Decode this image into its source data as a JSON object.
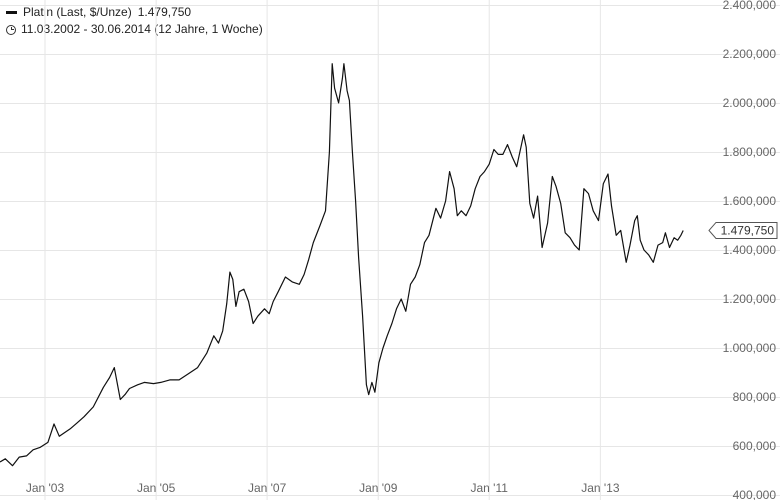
{
  "legend": {
    "series_label": "Platin (Last, $/Unze)",
    "last_value": "1.479,750",
    "date_range": "11.03.2002 - 30.06.2014 (12 Jahre, 1 Woche)"
  },
  "colors": {
    "line": "#111111",
    "grid": "#e6e6e6",
    "axis_text": "#666666",
    "badge_border": "#555555"
  },
  "chart_data": {
    "type": "line",
    "title": "Platin (Last, $/Unze)",
    "xlabel": "",
    "ylabel": "",
    "x_ticks": [
      {
        "label": "Jan '03",
        "date": "2003-01-01"
      },
      {
        "label": "Jan '05",
        "date": "2005-01-01"
      },
      {
        "label": "Jan '07",
        "date": "2007-01-01"
      },
      {
        "label": "Jan '09",
        "date": "2009-01-01"
      },
      {
        "label": "Jan '11",
        "date": "2011-01-01"
      },
      {
        "label": "Jan '13",
        "date": "2013-01-01"
      }
    ],
    "y_ticks": [
      {
        "label": "400,000",
        "value": 400
      },
      {
        "label": "600,000",
        "value": 600
      },
      {
        "label": "800,000",
        "value": 800
      },
      {
        "label": "1.000,000",
        "value": 1000
      },
      {
        "label": "1.200,000",
        "value": 1200
      },
      {
        "label": "1.400,000",
        "value": 1400
      },
      {
        "label": "1.600,000",
        "value": 1600
      },
      {
        "label": "1.800,000",
        "value": 1800
      },
      {
        "label": "2.000,000",
        "value": 2000
      },
      {
        "label": "2.200,000",
        "value": 2200
      },
      {
        "label": "2.400,000",
        "value": 2400
      }
    ],
    "xlim": [
      "2002-03-11",
      "2014-12-10"
    ],
    "ylim": [
      380,
      2420
    ],
    "grid": true,
    "last_value_marker": {
      "label": "1.479,750",
      "value": 1479.75
    },
    "series": [
      {
        "name": "Platin (Last, $/Unze)",
        "points": [
          [
            "2002-03-11",
            535
          ],
          [
            "2002-04-15",
            548
          ],
          [
            "2002-06-01",
            520
          ],
          [
            "2002-07-15",
            555
          ],
          [
            "2002-09-01",
            560
          ],
          [
            "2002-10-15",
            585
          ],
          [
            "2002-12-01",
            595
          ],
          [
            "2003-01-20",
            615
          ],
          [
            "2003-03-01",
            690
          ],
          [
            "2003-04-05",
            640
          ],
          [
            "2003-05-10",
            655
          ],
          [
            "2003-06-15",
            670
          ],
          [
            "2003-08-01",
            695
          ],
          [
            "2003-09-15",
            720
          ],
          [
            "2003-11-15",
            760
          ],
          [
            "2004-01-20",
            840
          ],
          [
            "2004-03-01",
            880
          ],
          [
            "2004-04-01",
            920
          ],
          [
            "2004-05-10",
            790
          ],
          [
            "2004-06-10",
            810
          ],
          [
            "2004-07-10",
            835
          ],
          [
            "2004-09-01",
            850
          ],
          [
            "2004-10-15",
            860
          ],
          [
            "2004-12-15",
            855
          ],
          [
            "2005-02-01",
            860
          ],
          [
            "2005-04-01",
            870
          ],
          [
            "2005-06-01",
            870
          ],
          [
            "2005-08-01",
            895
          ],
          [
            "2005-10-01",
            920
          ],
          [
            "2005-12-01",
            980
          ],
          [
            "2006-01-15",
            1050
          ],
          [
            "2006-02-15",
            1020
          ],
          [
            "2006-03-15",
            1070
          ],
          [
            "2006-04-10",
            1180
          ],
          [
            "2006-05-01",
            1310
          ],
          [
            "2006-05-20",
            1280
          ],
          [
            "2006-06-10",
            1170
          ],
          [
            "2006-07-01",
            1230
          ],
          [
            "2006-08-01",
            1240
          ],
          [
            "2006-09-01",
            1190
          ],
          [
            "2006-10-01",
            1100
          ],
          [
            "2006-11-01",
            1130
          ],
          [
            "2006-12-15",
            1160
          ],
          [
            "2007-01-15",
            1140
          ],
          [
            "2007-02-10",
            1190
          ],
          [
            "2007-03-15",
            1230
          ],
          [
            "2007-05-01",
            1290
          ],
          [
            "2007-06-15",
            1270
          ],
          [
            "2007-08-01",
            1260
          ],
          [
            "2007-09-01",
            1300
          ],
          [
            "2007-10-01",
            1360
          ],
          [
            "2007-11-01",
            1430
          ],
          [
            "2007-12-15",
            1500
          ],
          [
            "2008-01-20",
            1560
          ],
          [
            "2008-02-15",
            1800
          ],
          [
            "2008-03-04",
            2160
          ],
          [
            "2008-03-20",
            2060
          ],
          [
            "2008-04-15",
            2000
          ],
          [
            "2008-05-10",
            2100
          ],
          [
            "2008-05-20",
            2160
          ],
          [
            "2008-06-10",
            2050
          ],
          [
            "2008-06-25",
            2010
          ],
          [
            "2008-07-15",
            1800
          ],
          [
            "2008-08-05",
            1600
          ],
          [
            "2008-08-25",
            1370
          ],
          [
            "2008-09-20",
            1130
          ],
          [
            "2008-10-15",
            850
          ],
          [
            "2008-10-30",
            810
          ],
          [
            "2008-11-20",
            860
          ],
          [
            "2008-12-10",
            820
          ],
          [
            "2009-01-05",
            940
          ],
          [
            "2009-02-01",
            1000
          ],
          [
            "2009-03-01",
            1050
          ],
          [
            "2009-04-01",
            1100
          ],
          [
            "2009-05-01",
            1160
          ],
          [
            "2009-06-01",
            1200
          ],
          [
            "2009-07-01",
            1150
          ],
          [
            "2009-08-01",
            1260
          ],
          [
            "2009-09-01",
            1290
          ],
          [
            "2009-10-01",
            1340
          ],
          [
            "2009-11-01",
            1430
          ],
          [
            "2009-12-01",
            1460
          ],
          [
            "2010-01-15",
            1570
          ],
          [
            "2010-02-15",
            1530
          ],
          [
            "2010-03-20",
            1600
          ],
          [
            "2010-04-15",
            1720
          ],
          [
            "2010-05-15",
            1650
          ],
          [
            "2010-06-05",
            1540
          ],
          [
            "2010-07-01",
            1560
          ],
          [
            "2010-08-01",
            1540
          ],
          [
            "2010-09-01",
            1580
          ],
          [
            "2010-10-01",
            1650
          ],
          [
            "2010-11-01",
            1700
          ],
          [
            "2010-12-01",
            1720
          ],
          [
            "2011-01-01",
            1750
          ],
          [
            "2011-02-01",
            1810
          ],
          [
            "2011-03-01",
            1790
          ],
          [
            "2011-04-01",
            1790
          ],
          [
            "2011-05-01",
            1830
          ],
          [
            "2011-06-01",
            1780
          ],
          [
            "2011-07-01",
            1740
          ],
          [
            "2011-08-15",
            1870
          ],
          [
            "2011-09-01",
            1820
          ],
          [
            "2011-09-25",
            1590
          ],
          [
            "2011-10-20",
            1530
          ],
          [
            "2011-11-15",
            1620
          ],
          [
            "2011-12-15",
            1410
          ],
          [
            "2012-01-20",
            1510
          ],
          [
            "2012-02-20",
            1700
          ],
          [
            "2012-03-15",
            1660
          ],
          [
            "2012-04-15",
            1590
          ],
          [
            "2012-05-15",
            1470
          ],
          [
            "2012-06-15",
            1450
          ],
          [
            "2012-07-15",
            1420
          ],
          [
            "2012-08-15",
            1400
          ],
          [
            "2012-09-15",
            1650
          ],
          [
            "2012-10-15",
            1630
          ],
          [
            "2012-11-15",
            1560
          ],
          [
            "2012-12-20",
            1520
          ],
          [
            "2013-01-20",
            1670
          ],
          [
            "2013-02-20",
            1710
          ],
          [
            "2013-03-15",
            1580
          ],
          [
            "2013-04-15",
            1460
          ],
          [
            "2013-05-15",
            1480
          ],
          [
            "2013-06-20",
            1350
          ],
          [
            "2013-07-15",
            1420
          ],
          [
            "2013-08-15",
            1520
          ],
          [
            "2013-09-01",
            1540
          ],
          [
            "2013-09-20",
            1440
          ],
          [
            "2013-10-15",
            1400
          ],
          [
            "2013-11-15",
            1380
          ],
          [
            "2013-12-15",
            1350
          ],
          [
            "2014-01-15",
            1420
          ],
          [
            "2014-02-15",
            1430
          ],
          [
            "2014-03-05",
            1470
          ],
          [
            "2014-04-01",
            1410
          ],
          [
            "2014-05-01",
            1450
          ],
          [
            "2014-05-25",
            1440
          ],
          [
            "2014-06-15",
            1460
          ],
          [
            "2014-06-30",
            1479.75
          ]
        ]
      }
    ]
  }
}
